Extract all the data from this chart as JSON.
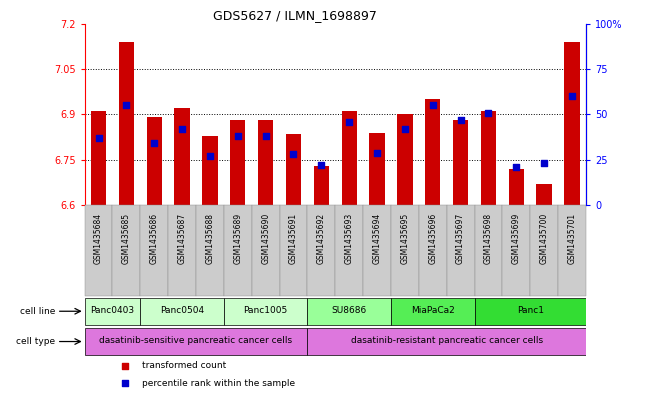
{
  "title": "GDS5627 / ILMN_1698897",
  "samples": [
    "GSM1435684",
    "GSM1435685",
    "GSM1435686",
    "GSM1435687",
    "GSM1435688",
    "GSM1435689",
    "GSM1435690",
    "GSM1435691",
    "GSM1435692",
    "GSM1435693",
    "GSM1435694",
    "GSM1435695",
    "GSM1435696",
    "GSM1435697",
    "GSM1435698",
    "GSM1435699",
    "GSM1435700",
    "GSM1435701"
  ],
  "bar_values": [
    6.91,
    7.14,
    6.89,
    6.92,
    6.83,
    6.88,
    6.88,
    6.835,
    6.73,
    6.91,
    6.84,
    6.9,
    6.95,
    6.88,
    6.91,
    6.72,
    6.67,
    7.14
  ],
  "percentile_values": [
    37,
    55,
    34,
    42,
    27,
    38,
    38,
    28,
    22,
    46,
    29,
    42,
    55,
    47,
    51,
    21,
    23,
    60
  ],
  "ymin": 6.6,
  "ymax": 7.2,
  "yticks": [
    6.6,
    6.75,
    6.9,
    7.05,
    7.2
  ],
  "ytick_labels": [
    "6.6",
    "6.75",
    "6.9",
    "7.05",
    "7.2"
  ],
  "y2ticks": [
    0,
    25,
    50,
    75,
    100
  ],
  "y2tick_labels": [
    "0",
    "25",
    "50",
    "75",
    "100%"
  ],
  "bar_color": "#cc0000",
  "blue_color": "#0000cc",
  "bar_width": 0.55,
  "cell_lines": [
    {
      "label": "Panc0403",
      "start": 0,
      "end": 2
    },
    {
      "label": "Panc0504",
      "start": 2,
      "end": 5
    },
    {
      "label": "Panc1005",
      "start": 5,
      "end": 8
    },
    {
      "label": "SU8686",
      "start": 8,
      "end": 11
    },
    {
      "label": "MiaPaCa2",
      "start": 11,
      "end": 14
    },
    {
      "label": "Panc1",
      "start": 14,
      "end": 18
    }
  ],
  "cell_line_bg_colors": [
    "#ccffcc",
    "#ccffcc",
    "#ccffcc",
    "#99ff99",
    "#55ee55",
    "#33dd33"
  ],
  "cell_type_labels": [
    {
      "label": "dasatinib-sensitive pancreatic cancer cells",
      "start": 0,
      "end": 8
    },
    {
      "label": "dasatinib-resistant pancreatic cancer cells",
      "start": 8,
      "end": 18
    }
  ],
  "cell_type_color": "#dd77dd",
  "sample_bg_color": "#cccccc",
  "legend": [
    {
      "color": "#cc0000",
      "label": "transformed count"
    },
    {
      "color": "#0000cc",
      "label": "percentile rank within the sample"
    }
  ]
}
